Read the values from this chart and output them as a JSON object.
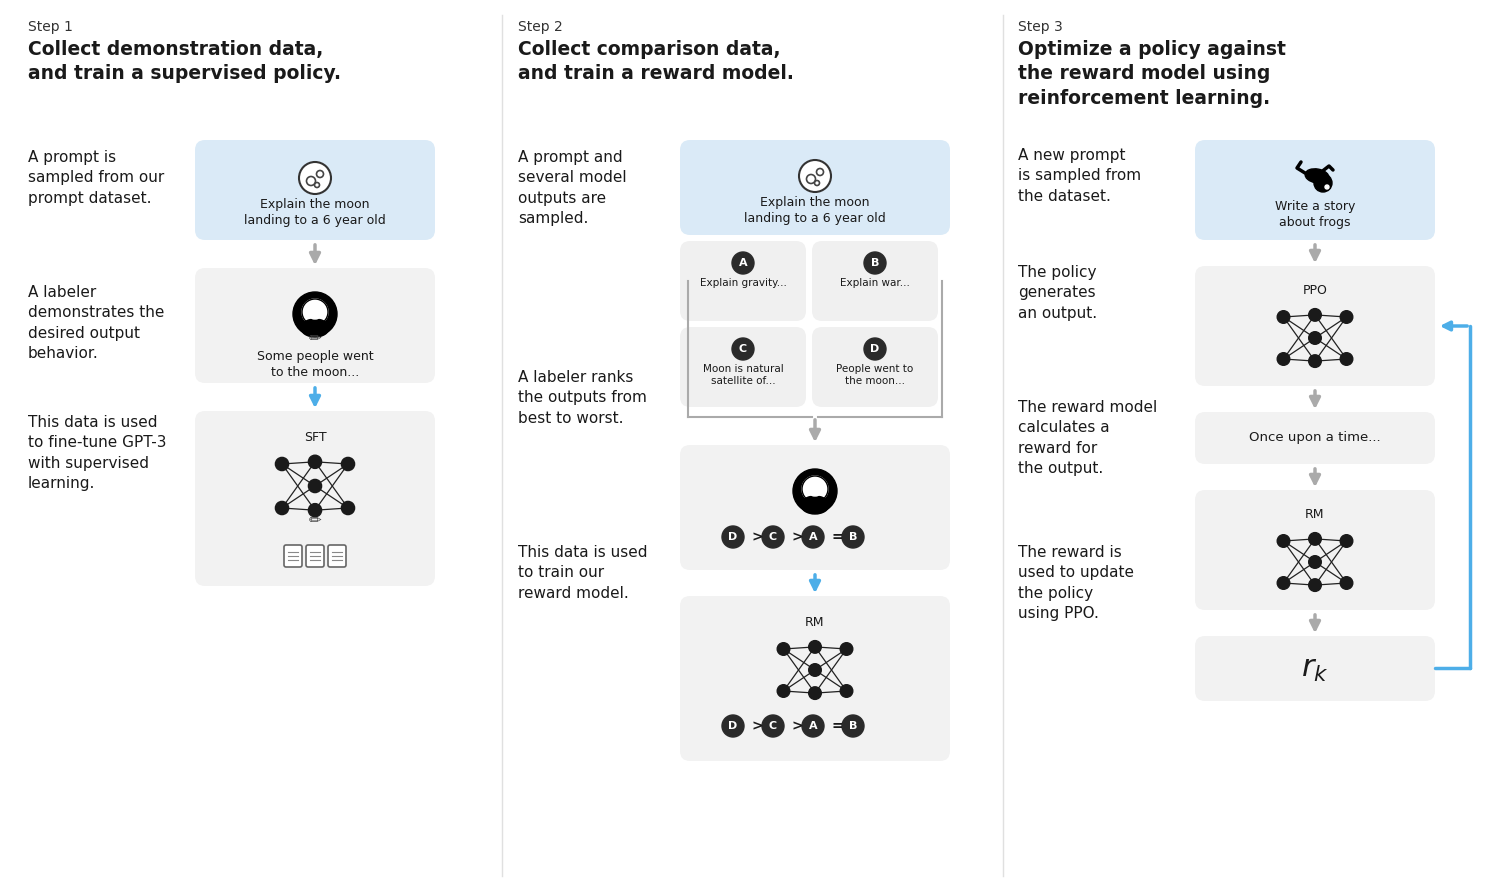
{
  "bg_color": "#ffffff",
  "step1": {
    "step_label": "Step 1",
    "title": "Collect demonstration data,\nand train a supervised policy.",
    "bullets": [
      "A prompt is\nsampled from our\nprompt dataset.",
      "A labeler\ndemonstrates the\ndesired output\nbehavior.",
      "This data is used\nto fine-tune GPT-3\nwith supervised\nlearning."
    ],
    "box1_label": "Explain the moon\nlanding to a 6 year old",
    "box1_bg": "#daeaf7",
    "box2_label": "Some people went\nto the moon...",
    "box2_bg": "#f2f2f2",
    "box3_label": "SFT",
    "box3_bg": "#f2f2f2"
  },
  "step2": {
    "step_label": "Step 2",
    "title": "Collect comparison data,\nand train a reward model.",
    "bullets": [
      "A prompt and\nseveral model\noutputs are\nsampled.",
      "A labeler ranks\nthe outputs from\nbest to worst.",
      "This data is used\nto train our\nreward model."
    ],
    "box1_label": "Explain the moon\nlanding to a 6 year old",
    "box1_bg": "#daeaf7",
    "abcd": {
      "A": "Explain gravity...",
      "B": "Explain war...",
      "C": "Moon is natural\nsatellite of...",
      "D": "People went to\nthe moon..."
    },
    "ranking": [
      "D",
      ">",
      "C",
      ">",
      "A",
      "=",
      "B"
    ],
    "box2_bg": "#f2f2f2",
    "box3_label": "RM",
    "box3_bg": "#f2f2f2"
  },
  "step3": {
    "step_label": "Step 3",
    "title": "Optimize a policy against\nthe reward model using\nreinforcement learning.",
    "bullets": [
      "A new prompt\nis sampled from\nthe dataset.",
      "The policy\ngenerates\nan output.",
      "The reward model\ncalculates a\nreward for\nthe output.",
      "The reward is\nused to update\nthe policy\nusing PPO."
    ],
    "box1_label": "Write a story\nabout frogs",
    "box1_bg": "#daeaf7",
    "box2_label": "PPO",
    "box2_bg": "#f2f2f2",
    "box3_label": "Once upon a time...",
    "box3_bg": "#f2f2f2",
    "box4_label": "RM",
    "box4_bg": "#f2f2f2",
    "box5_label": "r_k",
    "box5_bg": "#f2f2f2"
  },
  "arrow_gray": "#aaaaaa",
  "arrow_blue": "#4daee8",
  "text_dark": "#1a1a1a",
  "node_dark": "#1a1a1a",
  "divider_color": "#e0e0e0"
}
